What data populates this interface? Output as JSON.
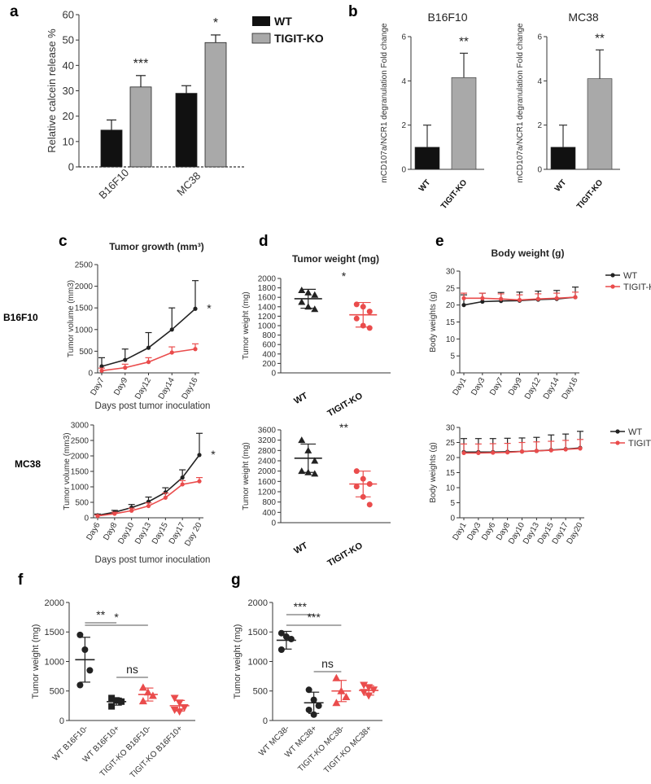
{
  "colors": {
    "wt": "#111111",
    "ko": "#a9a9a9",
    "red": "#ea4c4c",
    "axis": "#333333"
  },
  "panel_labels": {
    "a": "a",
    "b": "b",
    "c": "c",
    "d": "d",
    "e": "e",
    "f": "f",
    "g": "g"
  },
  "row_labels": {
    "b16": "B16F10",
    "mc38": "MC38"
  },
  "chart_data": [
    {
      "id": "a",
      "type": "bar",
      "title": "",
      "ylabel": "Relative calcein release %",
      "ylim": [
        0,
        60
      ],
      "yticks": [
        0,
        10,
        20,
        30,
        40,
        50,
        60
      ],
      "categories": [
        "B16F10",
        "MC38"
      ],
      "series": [
        {
          "name": "WT",
          "values": [
            14.5,
            29
          ],
          "errors": [
            4,
            3
          ]
        },
        {
          "name": "TIGIT-KO",
          "values": [
            31.5,
            49
          ],
          "errors": [
            4.5,
            3
          ]
        }
      ],
      "annotations": [
        "***",
        "*"
      ],
      "legend": [
        "WT",
        "TIGIT-KO"
      ]
    },
    {
      "id": "b1",
      "type": "bar",
      "title": "B16F10",
      "ylabel": "mCD107a/NCR1 degranulation Fold change",
      "ylim": [
        0,
        6
      ],
      "yticks": [
        0,
        2,
        4,
        6
      ],
      "categories": [
        "WT",
        "TIGIT-KO"
      ],
      "values": [
        1,
        4.15
      ],
      "errors": [
        1,
        1.1
      ],
      "annotation": "**"
    },
    {
      "id": "b2",
      "type": "bar",
      "title": "MC38",
      "ylabel": "mCD107a/NCR1 degranulation Fold change",
      "ylim": [
        0,
        6
      ],
      "yticks": [
        0,
        2,
        4,
        6
      ],
      "categories": [
        "WT",
        "TIGIT-KO"
      ],
      "values": [
        1,
        4.1
      ],
      "errors": [
        1,
        1.3
      ],
      "annotation": "**"
    },
    {
      "id": "c1",
      "type": "line",
      "title": "Tumor growth (mm³)",
      "xlabel": "Days post tumor inoculation",
      "ylabel": "Tumor volume (mm3)",
      "ylim": [
        0,
        2500
      ],
      "yticks": [
        0,
        500,
        1000,
        1500,
        2000,
        2500
      ],
      "categories": [
        "Day7",
        "Day9",
        "Day12",
        "Day14",
        "Day16"
      ],
      "series": [
        {
          "name": "WT",
          "values": [
            150,
            300,
            580,
            1000,
            1480
          ],
          "errors": [
            200,
            250,
            350,
            500,
            650
          ]
        },
        {
          "name": "TIGIT-KO",
          "values": [
            50,
            120,
            250,
            470,
            550
          ],
          "errors": [
            60,
            80,
            100,
            130,
            120
          ]
        }
      ],
      "annotation": "*"
    },
    {
      "id": "c2",
      "type": "line",
      "title": "",
      "xlabel": "Days post tumor inoculation",
      "ylabel": "Tumor volume (mm3)",
      "ylim": [
        0,
        3000
      ],
      "yticks": [
        0,
        500,
        1000,
        1500,
        2000,
        2500,
        3000
      ],
      "categories": [
        "Day6",
        "Day8",
        "Day10",
        "Day13",
        "Day15",
        "Day17",
        "Day 20"
      ],
      "series": [
        {
          "name": "WT",
          "values": [
            80,
            180,
            330,
            520,
            820,
            1300,
            2030
          ],
          "errors": [
            40,
            60,
            100,
            150,
            150,
            250,
            700
          ]
        },
        {
          "name": "TIGIT-KO",
          "values": [
            60,
            130,
            230,
            380,
            650,
            1080,
            1180
          ],
          "errors": [
            30,
            50,
            80,
            100,
            150,
            120,
            120
          ]
        }
      ],
      "annotation": "*"
    },
    {
      "id": "d1",
      "type": "scatter",
      "title": "Tumor weight (mg)",
      "ylabel": "Tumor weight (mg)",
      "ylim": [
        0,
        2000
      ],
      "yticks": [
        0,
        200,
        400,
        600,
        800,
        1000,
        1200,
        1400,
        1600,
        1800,
        2000
      ],
      "categories": [
        "WT",
        "TIGIT-KO"
      ],
      "groups": [
        {
          "name": "WT",
          "points": [
            1750,
            1700,
            1650,
            1500,
            1400,
            1350
          ],
          "mean": 1570,
          "sd": 200
        },
        {
          "name": "TIGIT-KO",
          "points": [
            1450,
            1400,
            1300,
            1150,
            1000,
            950
          ],
          "mean": 1230,
          "sd": 260
        }
      ],
      "annotation": "*"
    },
    {
      "id": "d2",
      "type": "scatter",
      "title": "",
      "ylabel": "Tumor weight (mg)",
      "ylim": [
        0,
        3600
      ],
      "yticks": [
        0,
        400,
        800,
        1200,
        1600,
        2000,
        2400,
        2800,
        3200,
        3600
      ],
      "categories": [
        "WT",
        "TIGIT-KO"
      ],
      "groups": [
        {
          "name": "WT",
          "points": [
            3200,
            2800,
            2400,
            2000,
            1950,
            1900
          ],
          "mean": 2500,
          "sd": 550
        },
        {
          "name": "TIGIT-KO",
          "points": [
            2000,
            1700,
            1500,
            1400,
            1000,
            700
          ],
          "mean": 1500,
          "sd": 500
        }
      ],
      "annotation": "**"
    },
    {
      "id": "e1",
      "type": "line",
      "title": "Body weight (g)",
      "ylabel": "Body weights (g)",
      "ylim": [
        0,
        30
      ],
      "yticks": [
        0,
        5,
        10,
        15,
        20,
        25,
        30
      ],
      "categories": [
        "Day1",
        "Day3",
        "Day7",
        "Day9",
        "Day12",
        "Day14",
        "Day16"
      ],
      "series": [
        {
          "name": "WT",
          "values": [
            20,
            21,
            21.2,
            21.3,
            21.6,
            21.8,
            22.3
          ],
          "errors": [
            3,
            2.5,
            2.5,
            2.5,
            2.5,
            2.5,
            3
          ]
        },
        {
          "name": "TIGIT-KO",
          "values": [
            22,
            22,
            21.8,
            21.5,
            21.8,
            22,
            22.3
          ],
          "errors": [
            1.5,
            1.5,
            1.5,
            1.5,
            1.5,
            1.5,
            1.5
          ]
        }
      ],
      "legend": [
        "WT",
        "TIGIT-KO"
      ]
    },
    {
      "id": "e2",
      "type": "line",
      "title": "",
      "ylabel": "Body weights (g)",
      "ylim": [
        0,
        30
      ],
      "yticks": [
        0,
        5,
        10,
        15,
        20,
        25,
        30
      ],
      "categories": [
        "Day1",
        "Day3",
        "Day6",
        "Day8",
        "Day10",
        "Day13",
        "Day15",
        "Day17",
        "Day20"
      ],
      "series": [
        {
          "name": "WT",
          "values": [
            21.8,
            21.8,
            21.8,
            21.9,
            22,
            22.2,
            22.5,
            22.8,
            23.2
          ],
          "errors": [
            4.5,
            4.5,
            4.5,
            4.5,
            4.5,
            4.5,
            5,
            5,
            5.5
          ]
        },
        {
          "name": "TIGIT-KO",
          "values": [
            21.5,
            21.5,
            21.6,
            21.7,
            22,
            22.2,
            22.4,
            22.7,
            23
          ],
          "errors": [
            3,
            3,
            3,
            3,
            3,
            3,
            3,
            3,
            3
          ]
        }
      ],
      "legend": [
        "WT",
        "TIGIT-KO"
      ]
    },
    {
      "id": "f",
      "type": "scatter",
      "title": "",
      "ylabel": "Tumor weight (mg)",
      "ylim": [
        0,
        2000
      ],
      "yticks": [
        0,
        500,
        1000,
        1500,
        2000
      ],
      "categories": [
        "WT B16F10-",
        "WT B16F10+",
        "TIGIT-KO B16F10-",
        "TIGIT-KO B16F10+"
      ],
      "groups": [
        {
          "name": "WT B16F10-",
          "points": [
            1450,
            1200,
            850,
            600
          ],
          "mean": 1030,
          "sd": 380,
          "marker": "circle",
          "color": "black"
        },
        {
          "name": "WT B16F10+",
          "points": [
            380,
            340,
            320,
            240
          ],
          "mean": 320,
          "sd": 60,
          "marker": "square",
          "color": "black"
        },
        {
          "name": "TIGIT-KO B16F10-",
          "points": [
            560,
            480,
            420,
            330
          ],
          "mean": 440,
          "sd": 110,
          "marker": "triangle",
          "color": "red"
        },
        {
          "name": "TIGIT-KO B16F10+",
          "points": [
            380,
            300,
            220,
            180,
            150
          ],
          "mean": 250,
          "sd": 90,
          "marker": "triangle-down",
          "color": "red"
        }
      ],
      "brackets": [
        {
          "from": 0,
          "to": 1,
          "label": "**"
        },
        {
          "from": 0,
          "to": 2,
          "label": "*"
        },
        {
          "from": 1,
          "to": 2,
          "label": "ns"
        }
      ]
    },
    {
      "id": "g",
      "type": "scatter",
      "title": "",
      "ylabel": "Tumor weight (mg)",
      "ylim": [
        0,
        2000
      ],
      "yticks": [
        0,
        500,
        1000,
        1500,
        2000
      ],
      "categories": [
        "WT MC38-",
        "WT MC38+",
        "TIGIT-KO MC38-",
        "TIGIT-KO MC38+"
      ],
      "groups": [
        {
          "name": "WT MC38-",
          "points": [
            1480,
            1420,
            1380,
            1200
          ],
          "mean": 1360,
          "sd": 150,
          "marker": "circle",
          "color": "black"
        },
        {
          "name": "WT MC38+",
          "points": [
            520,
            350,
            250,
            180,
            100
          ],
          "mean": 300,
          "sd": 180,
          "marker": "circle",
          "color": "black"
        },
        {
          "name": "TIGIT-KO MC38-",
          "points": [
            720,
            500,
            400,
            300
          ],
          "mean": 500,
          "sd": 180,
          "marker": "triangle",
          "color": "red"
        },
        {
          "name": "TIGIT-KO MC38+",
          "points": [
            600,
            560,
            520,
            480,
            420
          ],
          "mean": 510,
          "sd": 80,
          "marker": "triangle-down",
          "color": "red"
        }
      ],
      "brackets": [
        {
          "from": 0,
          "to": 1,
          "label": "***"
        },
        {
          "from": 0,
          "to": 2,
          "label": "***"
        },
        {
          "from": 1,
          "to": 2,
          "label": "ns"
        }
      ]
    }
  ]
}
